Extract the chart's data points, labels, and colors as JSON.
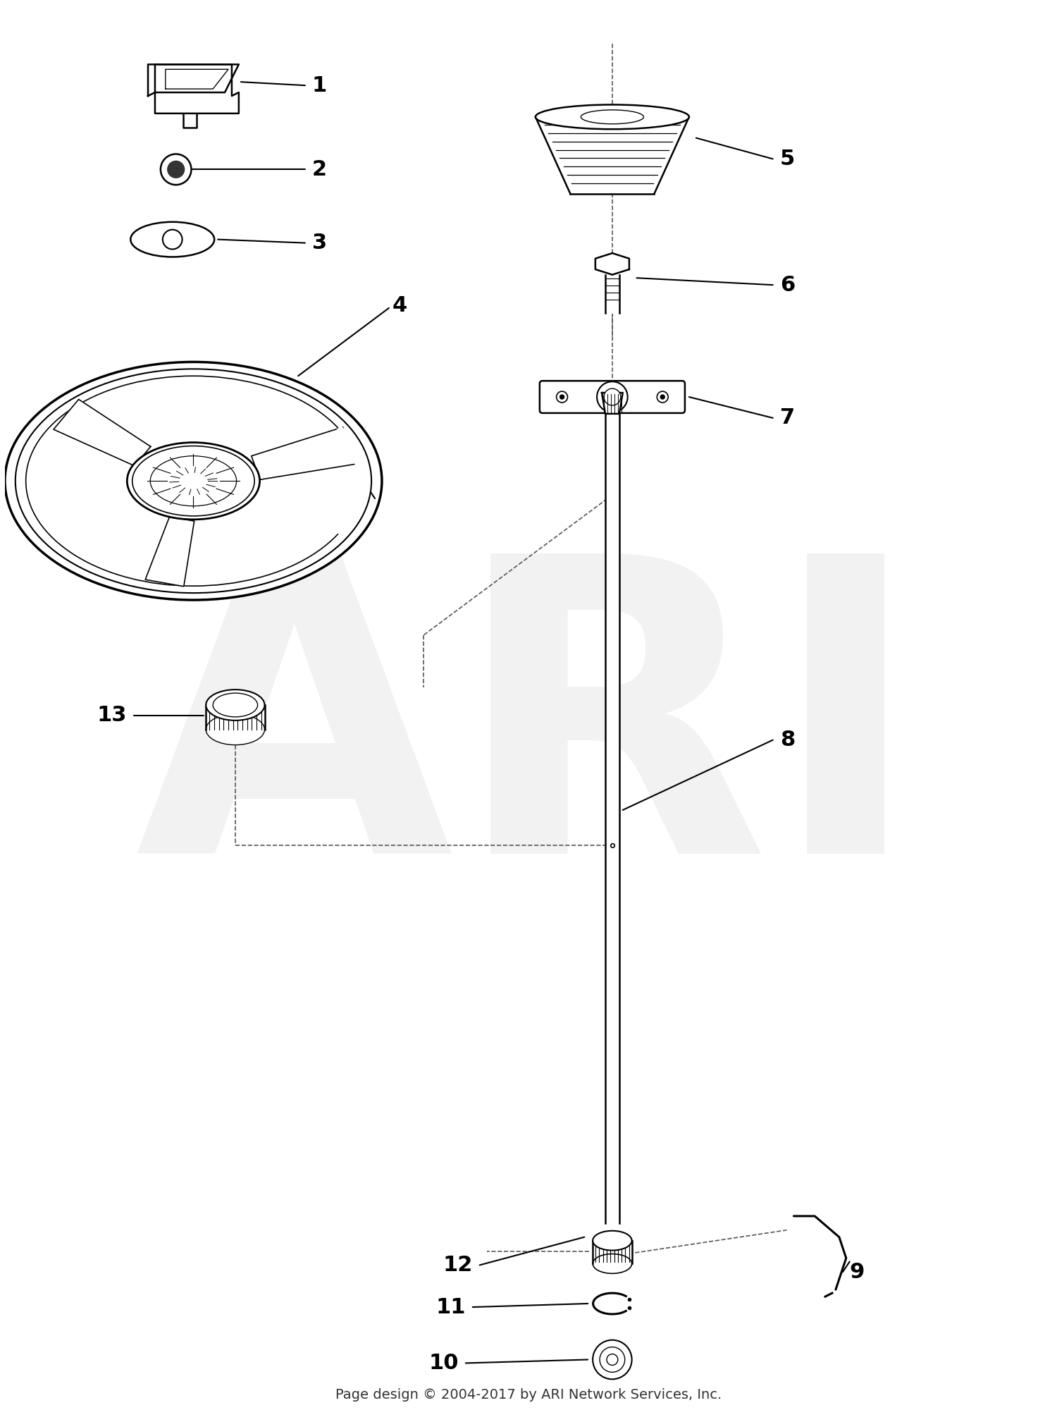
{
  "footer": "Page design © 2004-2017 by ARI Network Services, Inc.",
  "bg_color": "#ffffff",
  "watermark": "ARI",
  "watermark_color": "#cccccc",
  "fig_w": 15.0,
  "fig_h": 20.0,
  "dpi": 100
}
